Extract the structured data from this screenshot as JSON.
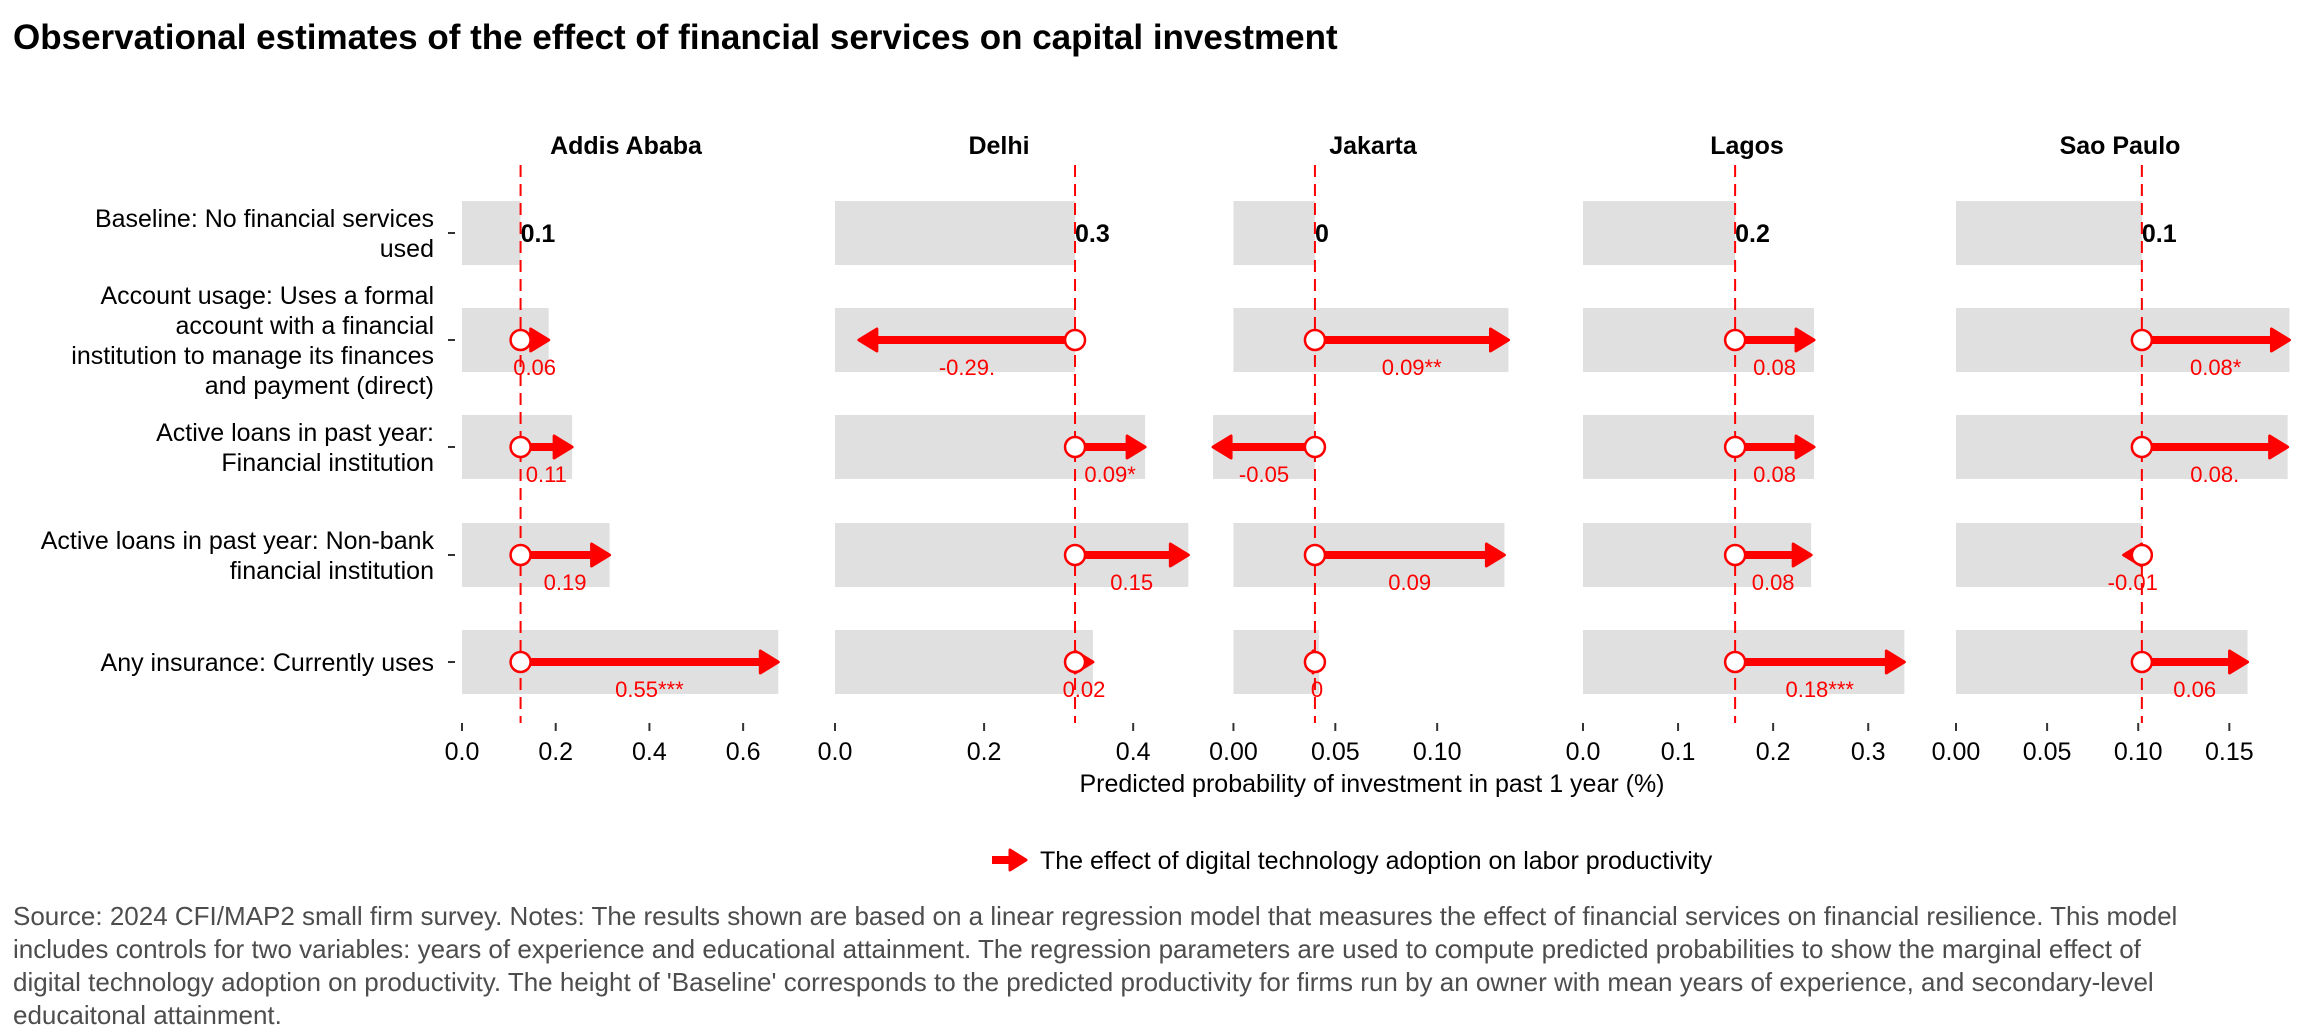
{
  "title": "Observational estimates of the effect of financial services on capital investment",
  "caption": "Source: 2024 CFI/MAP2 small firm survey. Notes: The results shown are based on a linear regression model that measures the effect of financial services on financial resilience. This model includes controls for two variables: years of experience and educational attainment. The regression parameters are used to compute predicted probabilities to show the marginal effect of digital technology adoption on productivity. The height of 'Baseline' corresponds to the predicted productivity for firms run by an owner with mean years of experience, and secondary-level educaitonal attainment.",
  "colors": {
    "effect": "#ff0000",
    "bar": "#e0e0e0",
    "baseline_line": "#ff0000",
    "text": "#000000",
    "caption": "#4d4d4d"
  },
  "chart_data": {
    "type": "bar",
    "title": "Observational estimates of the effect of financial services on capital investment",
    "xlabel": "Predicted probability of investment in past 1 year (%)",
    "legend": {
      "label": "The effect of digital technology adoption on labor productivity",
      "position": "bottom"
    },
    "categories": [
      "Baseline: No financial services used",
      "Account usage: Uses a formal account with a financial institution to manage its finances and payment (direct)",
      "Active loans in past year: Financial institution",
      "Active loans in past year: Non-bank financial institution",
      "Any insurance: Currently uses"
    ],
    "category_lines": [
      [
        "Baseline: No financial services",
        "used"
      ],
      [
        "Account usage: Uses a formal",
        "account with a financial",
        "institution to manage its finances",
        "and payment (direct)"
      ],
      [
        "Active loans in past year:",
        "Financial institution"
      ],
      [
        "Active loans in past year: Non-bank",
        "financial institution"
      ],
      [
        "Any insurance: Currently uses"
      ]
    ],
    "grid": false,
    "panels": [
      {
        "name": "Addis Ababa",
        "xlim": [
          0,
          0.7
        ],
        "ticks": [
          0,
          0.2,
          0.4,
          0.6
        ],
        "tick_labels": [
          "0.0",
          "0.2",
          "0.4",
          "0.6"
        ],
        "baseline": 0.125,
        "baseline_label": "0.1",
        "effects": [
          0.06,
          0.11,
          0.19,
          0.55
        ],
        "labels": [
          "0.06",
          "0.11",
          "0.19",
          "0.55***"
        ]
      },
      {
        "name": "Delhi",
        "xlim": [
          0,
          0.44
        ],
        "ticks": [
          0,
          0.2,
          0.4
        ],
        "tick_labels": [
          "0.0",
          "0.2",
          "0.4"
        ],
        "baseline": 0.322,
        "baseline_label": "0.3",
        "effects": [
          -0.29,
          0.094,
          0.152,
          0.024
        ],
        "labels": [
          "-0.29.",
          "0.09*",
          "0.15",
          "0.02"
        ]
      },
      {
        "name": "Jakarta",
        "xlim": [
          -0.012,
          0.149
        ],
        "ticks": [
          0,
          0.05,
          0.1
        ],
        "tick_labels": [
          "0.00",
          "0.05",
          "0.10"
        ],
        "baseline": 0.04,
        "baseline_label": "0",
        "effects": [
          0.095,
          -0.05,
          0.093,
          0.002
        ],
        "labels": [
          "0.09**",
          "-0.05",
          "0.09",
          "0"
        ]
      },
      {
        "name": "Lagos",
        "xlim": [
          0,
          0.345
        ],
        "ticks": [
          0,
          0.1,
          0.2,
          0.3
        ],
        "tick_labels": [
          "0.0",
          "0.1",
          "0.2",
          "0.3"
        ],
        "baseline": 0.16,
        "baseline_label": "0.2",
        "effects": [
          0.083,
          0.083,
          0.08,
          0.178
        ],
        "labels": [
          "0.08",
          "0.08",
          "0.08",
          "0.18***"
        ]
      },
      {
        "name": "Sao Paulo",
        "xlim": [
          0,
          0.18
        ],
        "ticks": [
          0,
          0.05,
          0.1,
          0.15
        ],
        "tick_labels": [
          "0.00",
          "0.05",
          "0.10",
          "0.15"
        ],
        "baseline": 0.102,
        "baseline_label": "0.1",
        "effects": [
          0.081,
          0.08,
          -0.01,
          0.058
        ],
        "labels": [
          "0.08*",
          "0.08.",
          "-0.01",
          "0.06"
        ]
      }
    ]
  }
}
